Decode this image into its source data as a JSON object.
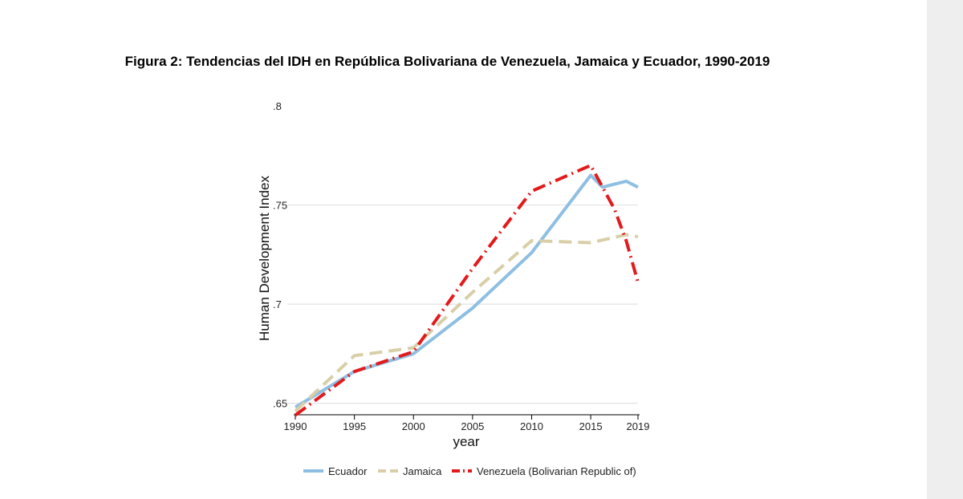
{
  "figure": {
    "title": "Figura 2: Tendencias del IDH en República Bolivariana de Venezuela, Jamaica y Ecuador, 1990-2019"
  },
  "chart_data": {
    "type": "line",
    "xlabel": "year",
    "ylabel": "Human Development Index",
    "xlim": [
      1990,
      2019
    ],
    "ylim": [
      0.645,
      0.8
    ],
    "x_ticks": [
      1990,
      1995,
      2000,
      2005,
      2010,
      2015,
      2019
    ],
    "y_ticks": [
      {
        "value": 0.65,
        "label": ".65"
      },
      {
        "value": 0.7,
        "label": ".7"
      },
      {
        "value": 0.75,
        "label": ".75"
      },
      {
        "value": 0.8,
        "label": ".8"
      }
    ],
    "grid": true,
    "legend_position": "bottom",
    "series": [
      {
        "name": "Ecuador",
        "color": "#8ebfe2",
        "style": "solid",
        "points": [
          [
            1990,
            0.648
          ],
          [
            1995,
            0.666
          ],
          [
            2000,
            0.675
          ],
          [
            2005,
            0.698
          ],
          [
            2010,
            0.726
          ],
          [
            2015,
            0.765
          ],
          [
            2016,
            0.759
          ],
          [
            2018,
            0.762
          ],
          [
            2019,
            0.759
          ]
        ]
      },
      {
        "name": "Jamaica",
        "color": "#d8cfa8",
        "style": "dashed",
        "points": [
          [
            1990,
            0.646
          ],
          [
            1995,
            0.674
          ],
          [
            2000,
            0.678
          ],
          [
            2005,
            0.706
          ],
          [
            2010,
            0.732
          ],
          [
            2015,
            0.731
          ],
          [
            2018,
            0.735
          ],
          [
            2019,
            0.734
          ]
        ]
      },
      {
        "name": "Venezuela (Bolivarian Republic of)",
        "color": "#e31a1c",
        "style": "dashdot",
        "points": [
          [
            1990,
            0.644
          ],
          [
            1995,
            0.666
          ],
          [
            2000,
            0.676
          ],
          [
            2005,
            0.718
          ],
          [
            2010,
            0.757
          ],
          [
            2015,
            0.77
          ],
          [
            2017,
            0.748
          ],
          [
            2018,
            0.732
          ],
          [
            2019,
            0.711
          ]
        ]
      }
    ]
  }
}
